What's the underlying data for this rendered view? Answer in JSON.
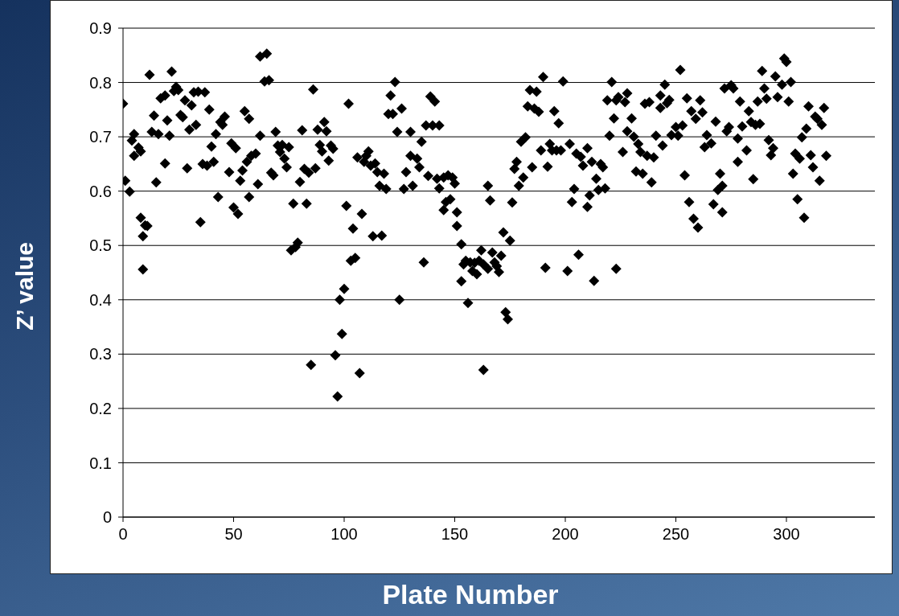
{
  "chart_data": {
    "type": "scatter",
    "xlabel": "Plate Number",
    "ylabel": "Z’ value",
    "xlim": [
      0,
      340
    ],
    "xticks": [
      0,
      50,
      100,
      150,
      200,
      250,
      300
    ],
    "ylim": [
      0,
      0.9
    ],
    "yticks": [
      0,
      0.1,
      0.2,
      0.3,
      0.4,
      0.5,
      0.6,
      0.7,
      0.8,
      0.9
    ],
    "grid": "y",
    "marker": "diamond",
    "series": [
      {
        "color": "#000000",
        "x": [
          0,
          1,
          3,
          4,
          5,
          5,
          7,
          8,
          8,
          9,
          9,
          10,
          11,
          12,
          13,
          14,
          15,
          16,
          17,
          19,
          19,
          20,
          21,
          22,
          23,
          24,
          25,
          26,
          27,
          28,
          29,
          30,
          31,
          32,
          33,
          34,
          35,
          36,
          37,
          38,
          39,
          40,
          41,
          42,
          43,
          44,
          45,
          46,
          48,
          49,
          50,
          51,
          52,
          53,
          54,
          55,
          56,
          57,
          57,
          58,
          60,
          61,
          62,
          62,
          64,
          65,
          66,
          67,
          68,
          69,
          70,
          71,
          72,
          73,
          74,
          75,
          76,
          77,
          78,
          79,
          80,
          81,
          82,
          83,
          84,
          85,
          86,
          87,
          88,
          89,
          90,
          91,
          92,
          93,
          94,
          95,
          96,
          97,
          98,
          99,
          100,
          101,
          102,
          103,
          104,
          105,
          106,
          107,
          108,
          109,
          110,
          111,
          112,
          113,
          114,
          115,
          116,
          117,
          118,
          119,
          120,
          121,
          122,
          123,
          124,
          125,
          126,
          127,
          128,
          130,
          130,
          131,
          133,
          134,
          135,
          136,
          137,
          138,
          139,
          140,
          141,
          142,
          143,
          143,
          145,
          145,
          146,
          147,
          148,
          149,
          150,
          151,
          151,
          153,
          153,
          154,
          155,
          156,
          157,
          158,
          159,
          160,
          161,
          162,
          163,
          163,
          165,
          165,
          166,
          167,
          168,
          169,
          170,
          171,
          172,
          173,
          174,
          175,
          176,
          177,
          178,
          179,
          180,
          181,
          182,
          183,
          184,
          185,
          186,
          187,
          188,
          189,
          190,
          191,
          192,
          193,
          194,
          195,
          196,
          197,
          198,
          199,
          201,
          202,
          203,
          204,
          205,
          206,
          207,
          208,
          210,
          210,
          211,
          212,
          213,
          214,
          215,
          216,
          217,
          218,
          219,
          220,
          221,
          222,
          223,
          223,
          224,
          226,
          227,
          228,
          228,
          230,
          231,
          232,
          233,
          234,
          235,
          236,
          237,
          238,
          239,
          240,
          241,
          243,
          243,
          244,
          245,
          246,
          247,
          248,
          250,
          251,
          252,
          253,
          254,
          255,
          256,
          257,
          258,
          259,
          260,
          261,
          262,
          263,
          264,
          266,
          267,
          268,
          269,
          270,
          271,
          271,
          272,
          273,
          274,
          275,
          276,
          278,
          278,
          279,
          280,
          282,
          283,
          284,
          285,
          286,
          287,
          288,
          289,
          290,
          291,
          292,
          293,
          294,
          295,
          296,
          298,
          299,
          300,
          301,
          302,
          303,
          304,
          305,
          306,
          307,
          308,
          309,
          310,
          311,
          312,
          313,
          314,
          315,
          316,
          317,
          318
        ],
        "values": [
          0.761,
          0.619,
          0.599,
          0.693,
          0.705,
          0.665,
          0.68,
          0.673,
          0.551,
          0.456,
          0.517,
          0.537,
          0.536,
          0.814,
          0.709,
          0.739,
          0.616,
          0.705,
          0.771,
          0.651,
          0.776,
          0.73,
          0.702,
          0.82,
          0.784,
          0.792,
          0.786,
          0.74,
          0.736,
          0.767,
          0.642,
          0.713,
          0.758,
          0.782,
          0.722,
          0.783,
          0.543,
          0.65,
          0.782,
          0.647,
          0.75,
          0.682,
          0.654,
          0.705,
          0.589,
          0.727,
          0.722,
          0.737,
          0.635,
          0.688,
          0.57,
          0.679,
          0.558,
          0.619,
          0.638,
          0.747,
          0.654,
          0.733,
          0.589,
          0.665,
          0.669,
          0.613,
          0.702,
          0.848,
          0.802,
          0.853,
          0.804,
          0.634,
          0.629,
          0.709,
          0.684,
          0.672,
          0.685,
          0.66,
          0.644,
          0.681,
          0.491,
          0.577,
          0.497,
          0.505,
          0.617,
          0.712,
          0.641,
          0.577,
          0.634,
          0.28,
          0.787,
          0.642,
          0.713,
          0.685,
          0.673,
          0.727,
          0.71,
          0.656,
          0.684,
          0.678,
          0.298,
          0.222,
          0.4,
          0.337,
          0.42,
          0.573,
          0.761,
          0.472,
          0.531,
          0.477,
          0.662,
          0.265,
          0.558,
          0.654,
          0.665,
          0.673,
          0.647,
          0.517,
          0.651,
          0.635,
          0.61,
          0.518,
          0.632,
          0.604,
          0.742,
          0.776,
          0.742,
          0.801,
          0.709,
          0.4,
          0.752,
          0.604,
          0.635,
          0.665,
          0.709,
          0.61,
          0.66,
          0.644,
          0.691,
          0.469,
          0.721,
          0.628,
          0.774,
          0.721,
          0.765,
          0.623,
          0.605,
          0.721,
          0.625,
          0.565,
          0.58,
          0.629,
          0.585,
          0.625,
          0.614,
          0.561,
          0.536,
          0.502,
          0.434,
          0.465,
          0.472,
          0.394,
          0.469,
          0.453,
          0.468,
          0.447,
          0.472,
          0.491,
          0.271,
          0.465,
          0.61,
          0.457,
          0.583,
          0.487,
          0.469,
          0.462,
          0.451,
          0.481,
          0.524,
          0.377,
          0.364,
          0.509,
          0.579,
          0.641,
          0.654,
          0.61,
          0.691,
          0.625,
          0.699,
          0.756,
          0.786,
          0.644,
          0.752,
          0.783,
          0.746,
          0.675,
          0.81,
          0.459,
          0.645,
          0.687,
          0.675,
          0.747,
          0.675,
          0.725,
          0.675,
          0.802,
          0.453,
          0.687,
          0.58,
          0.604,
          0.669,
          0.483,
          0.663,
          0.647,
          0.571,
          0.679,
          0.592,
          0.654,
          0.435,
          0.623,
          0.602,
          0.65,
          0.644,
          0.605,
          0.767,
          0.702,
          0.801,
          0.734,
          0.767,
          0.457,
          0.773,
          0.672,
          0.764,
          0.78,
          0.71,
          0.734,
          0.7,
          0.636,
          0.687,
          0.672,
          0.632,
          0.761,
          0.665,
          0.764,
          0.616,
          0.662,
          0.702,
          0.776,
          0.753,
          0.684,
          0.796,
          0.762,
          0.768,
          0.703,
          0.718,
          0.702,
          0.823,
          0.721,
          0.629,
          0.771,
          0.58,
          0.747,
          0.549,
          0.733,
          0.533,
          0.767,
          0.745,
          0.681,
          0.703,
          0.688,
          0.576,
          0.728,
          0.602,
          0.632,
          0.561,
          0.61,
          0.789,
          0.71,
          0.718,
          0.795,
          0.789,
          0.697,
          0.654,
          0.765,
          0.719,
          0.675,
          0.747,
          0.727,
          0.622,
          0.722,
          0.765,
          0.724,
          0.821,
          0.789,
          0.77,
          0.694,
          0.666,
          0.679,
          0.811,
          0.773,
          0.796,
          0.844,
          0.838,
          0.765,
          0.801,
          0.632,
          0.669,
          0.585,
          0.66,
          0.699,
          0.551,
          0.715,
          0.756,
          0.666,
          0.644,
          0.737,
          0.733,
          0.619,
          0.722,
          0.753,
          0.665
        ]
      }
    ]
  }
}
